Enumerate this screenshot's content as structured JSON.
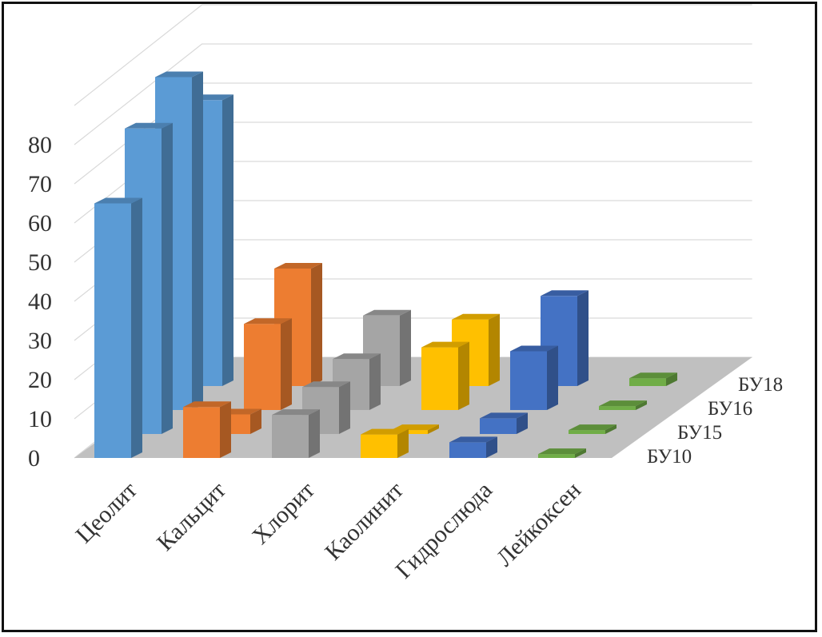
{
  "chart_data": {
    "type": "bar",
    "subtype": "3d-column",
    "categories": [
      "Цеолит",
      "Кальцит",
      "Хлорит",
      "Каолинит",
      "Гидрослюда",
      "Лейкоксен"
    ],
    "series": [
      {
        "name": "БУ10",
        "values": [
          65,
          13,
          11,
          6,
          4,
          1
        ],
        "color": "#5b9bd5"
      },
      {
        "name": "БУ15",
        "values": [
          78,
          5,
          12,
          1,
          4,
          1
        ],
        "color": "#ed7d31"
      },
      {
        "name": "БУ16",
        "values": [
          85,
          22,
          13,
          16,
          15,
          1
        ],
        "color": "#a5a5a5"
      },
      {
        "name": "БУ18",
        "values": [
          73,
          30,
          18,
          17,
          23,
          2
        ],
        "color": "#ffc000"
      }
    ],
    "bar_colors_by_category": [
      "#5b9bd5",
      "#ed7d31",
      "#a5a5a5",
      "#ffc000",
      "#4472c4",
      "#70ad47"
    ],
    "yticks": [
      0,
      10,
      20,
      30,
      40,
      50,
      60,
      70,
      80
    ],
    "ylim": [
      0,
      90
    ],
    "grid": true,
    "floor_color": "#c0c0c0"
  }
}
